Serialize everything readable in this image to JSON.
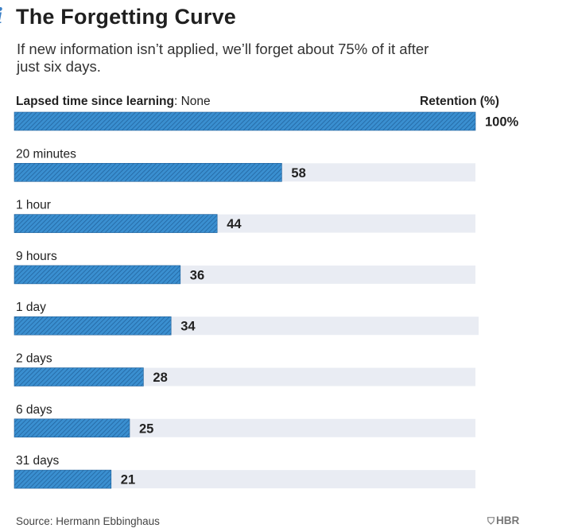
{
  "header": {
    "title": "The Forgetting Curve",
    "subtitle": "If new information isn’t applied, we’ll forget about 75% of it after just six days.",
    "column_left_bold": "Lapsed time since learning",
    "column_left_rest": ": None",
    "column_right": "Retention (%)"
  },
  "colors": {
    "bar": "#3a8fd0",
    "bar_stripe": "#1f5f99",
    "track": "#e9ecf3",
    "text": "#222222"
  },
  "chart_data": {
    "type": "bar",
    "orientation": "horizontal",
    "categories": [
      "None",
      "20 minutes",
      "1 hour",
      "9 hours",
      "1 day",
      "2 days",
      "6 days",
      "31 days"
    ],
    "values": [
      100,
      58,
      44,
      36,
      34,
      28,
      25,
      21
    ],
    "value_labels": [
      "100%",
      "58",
      "44",
      "36",
      "34",
      "28",
      "25",
      "21"
    ],
    "row_labels": [
      "",
      "20 minutes",
      "1 hour",
      "9 hours",
      "1 day",
      "2 days",
      "6 days",
      "31 days"
    ],
    "xlim": [
      0,
      100
    ],
    "title": "The Forgetting Curve",
    "xlabel": "Retention (%)",
    "ylabel": "Lapsed time since learning"
  },
  "footer": {
    "source": "Source: Hermann Ebbinghaus",
    "brand": "HBR",
    "brand_icon": "shield-icon"
  }
}
